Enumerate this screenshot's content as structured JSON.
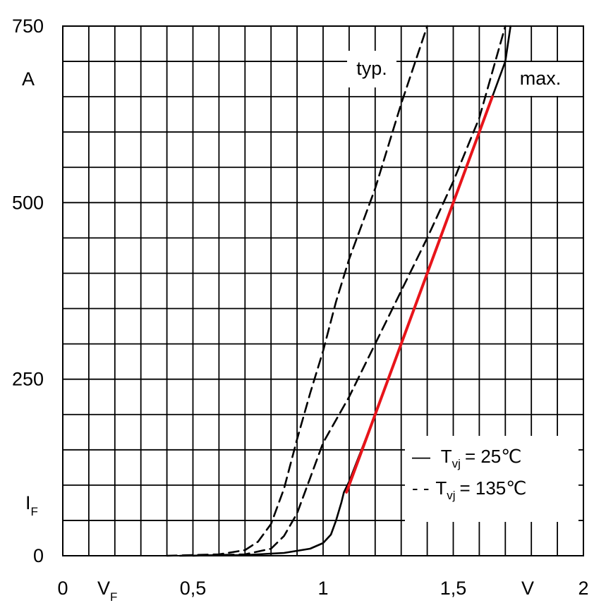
{
  "chart_data": {
    "type": "line",
    "x_unit": "V",
    "y_unit": "A",
    "xlabel_main": "V",
    "xlabel_sub": "F",
    "ylabel_main": "I",
    "ylabel_sub": "F",
    "xlim": [
      0,
      2
    ],
    "ylim": [
      0,
      750
    ],
    "x_ticks": [
      {
        "value": 0,
        "label": "0"
      },
      {
        "value": 0.5,
        "label": "0,5"
      },
      {
        "value": 1,
        "label": "1"
      },
      {
        "value": 1.5,
        "label": "1,5"
      },
      {
        "value": 2,
        "label": "2"
      }
    ],
    "y_ticks": [
      {
        "value": 0,
        "label": "0"
      },
      {
        "value": 250,
        "label": "250"
      },
      {
        "value": 500,
        "label": "500"
      },
      {
        "value": 750,
        "label": "750"
      }
    ],
    "grid": true,
    "grid_x_step": 0.1,
    "grid_y_step": 50,
    "annotations": [
      {
        "text": "typ.",
        "x": 1.18,
        "y": 690
      },
      {
        "text": "max.",
        "x": 1.83,
        "y": 676
      }
    ],
    "legend": {
      "placement": "lower-right",
      "entries": [
        {
          "marker": "—",
          "label": "T",
          "sub": "vj",
          "value": "=  25℃",
          "style": "solid"
        },
        {
          "marker": "- -",
          "label": "T",
          "sub": "vj",
          "value": "= 135℃",
          "style": "dashed"
        }
      ]
    },
    "series": [
      {
        "style": "dashed",
        "color": "#000000",
        "x": [
          0.4,
          0.6,
          0.7,
          0.75,
          0.8,
          0.85,
          0.9,
          0.95,
          1.0,
          1.05,
          1.1,
          1.2,
          1.3,
          1.4
        ],
        "y": [
          0,
          2,
          8,
          20,
          45,
          95,
          165,
          230,
          290,
          360,
          420,
          520,
          640,
          750
        ]
      },
      {
        "style": "dashed",
        "color": "#000000",
        "x": [
          0.5,
          0.7,
          0.8,
          0.85,
          0.9,
          0.95,
          1.0,
          1.1,
          1.2,
          1.3,
          1.4,
          1.5,
          1.6,
          1.7
        ],
        "y": [
          0,
          2,
          10,
          28,
          60,
          110,
          160,
          225,
          300,
          375,
          450,
          530,
          620,
          750
        ]
      },
      {
        "style": "solid",
        "color": "#000000",
        "x": [
          0.45,
          0.7,
          0.85,
          0.95,
          1.0,
          1.03,
          1.05,
          1.07,
          1.08,
          1.1,
          1.2,
          1.3,
          1.4,
          1.5,
          1.6,
          1.65,
          1.7,
          1.72
        ],
        "y": [
          0,
          1,
          4,
          10,
          18,
          30,
          50,
          75,
          90,
          105,
          200,
          300,
          400,
          500,
          600,
          650,
          700,
          750
        ]
      },
      {
        "style": "solid",
        "color": "#e8141a",
        "x": [
          1.09,
          1.65
        ],
        "y": [
          90,
          650
        ]
      }
    ]
  }
}
